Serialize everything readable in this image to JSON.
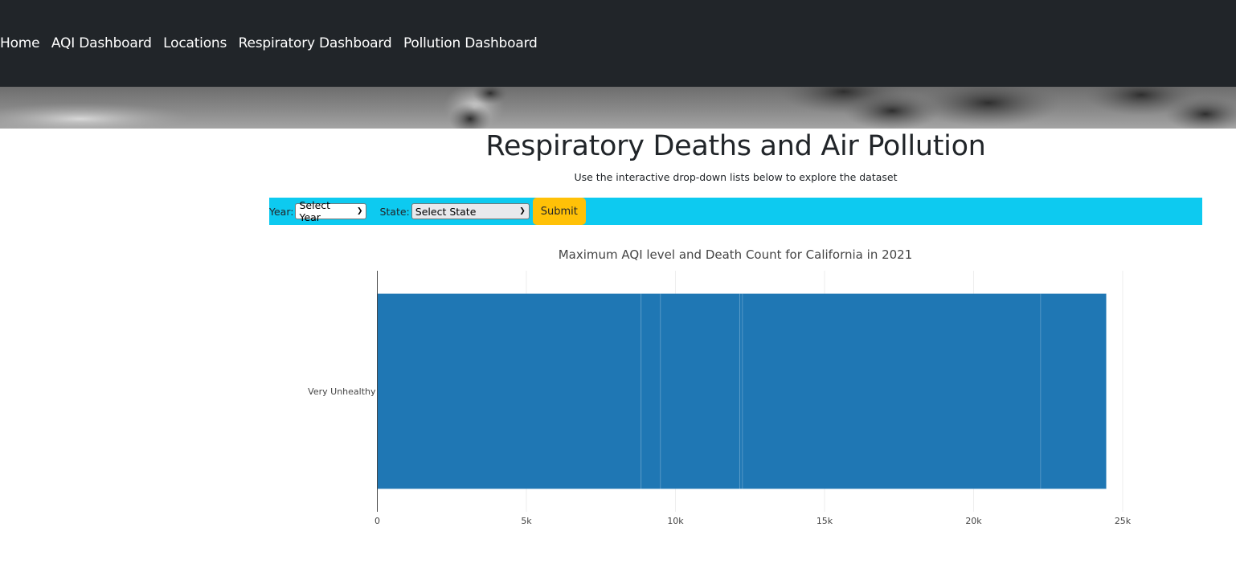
{
  "nav": {
    "items": [
      {
        "label": "Home"
      },
      {
        "label": "AQI Dashboard"
      },
      {
        "label": "Locations"
      },
      {
        "label": "Respiratory Dashboard"
      },
      {
        "label": "Pollution Dashboard"
      }
    ]
  },
  "page": {
    "title": "Respiratory Deaths and Air Pollution",
    "subtitle": "Use the interactive drop-down lists below to explore the dataset"
  },
  "filters": {
    "year_label": "Year:",
    "year_value": "Select Year",
    "state_label": "State:",
    "state_value": "Select State",
    "submit_label": "Submit"
  },
  "colors": {
    "navbar": "#212529",
    "filter_bar": "#0dcaf0",
    "submit": "#ffc107",
    "bar": "#1f77b4"
  },
  "chart_data": {
    "type": "bar",
    "orientation": "horizontal",
    "title": "Maximum AQI level and Death Count for California in 2021",
    "categories": [
      "Very Unhealthy"
    ],
    "segments": [
      8850,
      650,
      2650,
      100,
      10000,
      2200
    ],
    "values": [
      24450
    ],
    "xlim": [
      0,
      25000
    ],
    "xticks": [
      {
        "value": 0,
        "label": "0"
      },
      {
        "value": 5000,
        "label": "5k"
      },
      {
        "value": 10000,
        "label": "10k"
      },
      {
        "value": 15000,
        "label": "15k"
      },
      {
        "value": 20000,
        "label": "20k"
      },
      {
        "value": 25000,
        "label": "25k"
      }
    ],
    "grid": true
  }
}
